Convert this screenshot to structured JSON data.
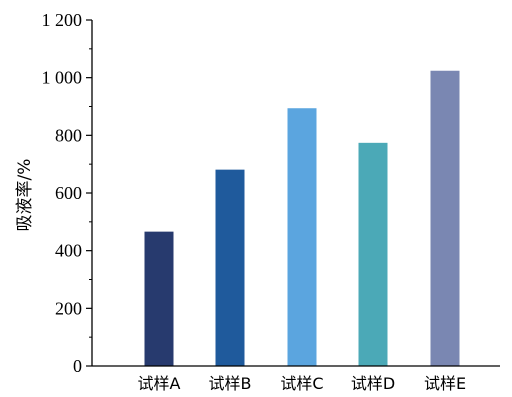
{
  "chart_data": {
    "type": "bar",
    "categories": [
      "试样A",
      "试样B",
      "试样C",
      "试样D",
      "试样E"
    ],
    "values": [
      466,
      681,
      894,
      774,
      1024
    ],
    "colors": [
      "#273a6e",
      "#1f5a9c",
      "#5ba5df",
      "#4ba9b7",
      "#7a87b2"
    ],
    "title": "",
    "xlabel": "",
    "ylabel": "吸液率/%",
    "ylim": [
      0,
      1200
    ],
    "yticks": [
      0,
      200,
      400,
      600,
      800,
      1000,
      1200
    ],
    "ytick_labels": [
      "0",
      "200",
      "400",
      "600",
      "800",
      "1 000",
      "1 200"
    ],
    "grid": false,
    "legend": "none"
  }
}
